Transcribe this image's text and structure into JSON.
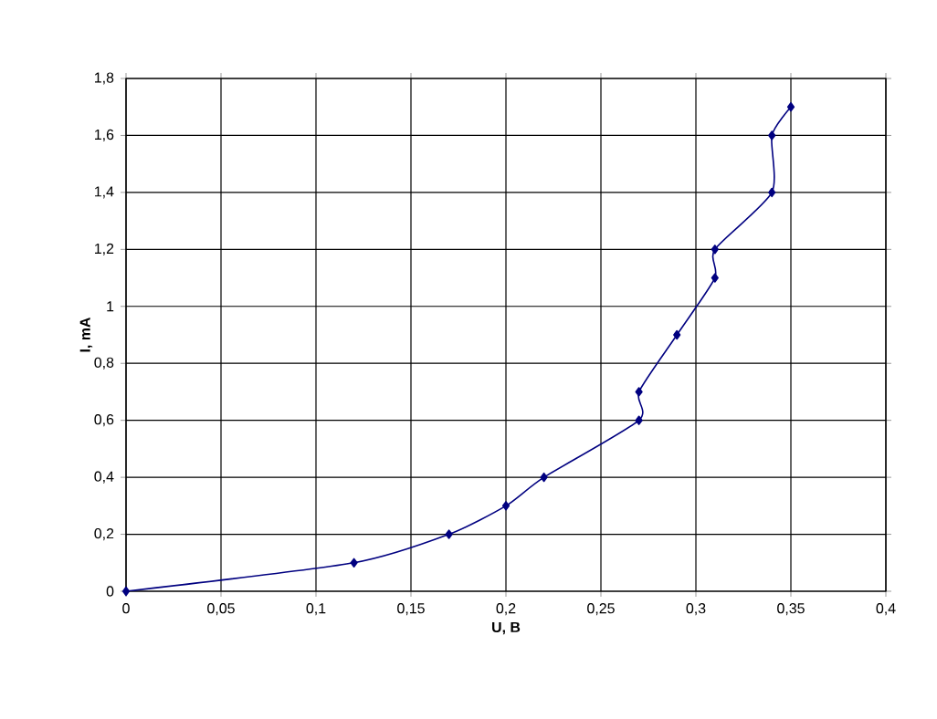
{
  "chart_data": {
    "type": "line",
    "xlabel": "U, B",
    "ylabel": "I, mA",
    "x": [
      0,
      0.12,
      0.17,
      0.2,
      0.22,
      0.27,
      0.27,
      0.29,
      0.31,
      0.31,
      0.34,
      0.34,
      0.35
    ],
    "series": [
      {
        "color": "#000080",
        "values": [
          0,
          0.1,
          0.2,
          0.3,
          0.4,
          0.6,
          0.7,
          0.9,
          1.1,
          1.2,
          1.4,
          1.6,
          1.7
        ]
      }
    ],
    "xlim": [
      0,
      0.4
    ],
    "xticks": [
      0,
      {
        "value": 0.05,
        "label": "0,05"
      },
      {
        "value": 0.1,
        "label": "0,1"
      },
      {
        "value": 0.15,
        "label": "0,15"
      },
      {
        "value": 0.2,
        "label": "0,2"
      },
      {
        "value": 0.25,
        "label": "0,25"
      },
      {
        "value": 0.3,
        "label": "0,3"
      },
      {
        "value": 0.35,
        "label": "0,35"
      },
      {
        "value": 0.4,
        "label": "0,4"
      }
    ],
    "ylim": [
      0,
      1.8
    ],
    "yticks": [
      0,
      {
        "value": 0.2,
        "label": "0,2"
      },
      {
        "value": 0.4,
        "label": "0,4"
      },
      {
        "value": 0.6,
        "label": "0,6"
      },
      {
        "value": 0.8,
        "label": "0,8"
      },
      1,
      {
        "value": 1.2,
        "label": "1,2"
      },
      {
        "value": 1.4,
        "label": "1,4"
      },
      {
        "value": 1.6,
        "label": "1,6"
      },
      {
        "value": 1.8,
        "label": "1,8"
      }
    ],
    "grid": true,
    "marker": "diamond",
    "line_style": "solid"
  }
}
